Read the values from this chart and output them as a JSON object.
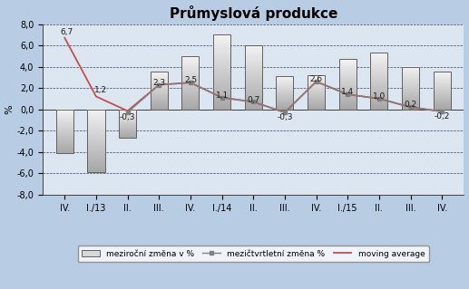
{
  "title": "Průmyslová produkce",
  "categories": [
    "IV.",
    "I./13",
    "II.",
    "III.",
    "IV.",
    "I./14",
    "II.",
    "III.",
    "IV.",
    "I./15",
    "II.",
    "III.",
    "IV."
  ],
  "bar_values": [
    -4.1,
    -5.9,
    -2.7,
    3.5,
    5.0,
    7.0,
    6.0,
    3.1,
    3.2,
    4.7,
    5.3,
    4.0,
    3.5
  ],
  "mezirocni_labels": [
    null,
    null,
    "-0,3",
    "2,3",
    "2,5",
    "1,1",
    "0,7",
    "-0,3",
    "2,6",
    "1,4",
    "1,0",
    "0,2",
    "-0,2"
  ],
  "mezirocni_values": [
    null,
    null,
    -0.3,
    2.3,
    2.5,
    1.1,
    0.7,
    -0.3,
    2.6,
    1.4,
    1.0,
    0.2,
    -0.2
  ],
  "moving_avg_values": [
    6.7,
    1.2,
    -0.15,
    2.3,
    2.5,
    1.1,
    0.7,
    -0.3,
    2.6,
    1.4,
    1.0,
    0.2,
    -0.2
  ],
  "moving_avg_labels_data": {
    "0": "6,7",
    "1": "1,2"
  },
  "ylabel": "%",
  "ylim": [
    -8.0,
    8.0
  ],
  "ytick_labels": [
    "-8,0",
    "-6,0",
    "-4,0",
    "-2,0",
    "0,0",
    "2,0",
    "4,0",
    "6,0",
    "8,0"
  ],
  "ytick_values": [
    -8.0,
    -6.0,
    -4.0,
    -2.0,
    0.0,
    2.0,
    4.0,
    6.0,
    8.0
  ],
  "background_color": "#b8cce4",
  "plot_bg_color": "#dce6f1",
  "legend_labels": [
    "meziroční změna v %",
    "mezičtvrtletní změna %",
    "moving average"
  ],
  "moving_avg_line_color": "#c0504d",
  "mezirocni_line_color": "#808080",
  "bar_edge_color": "#606060",
  "grid_color": "#404060",
  "title_fontsize": 11
}
